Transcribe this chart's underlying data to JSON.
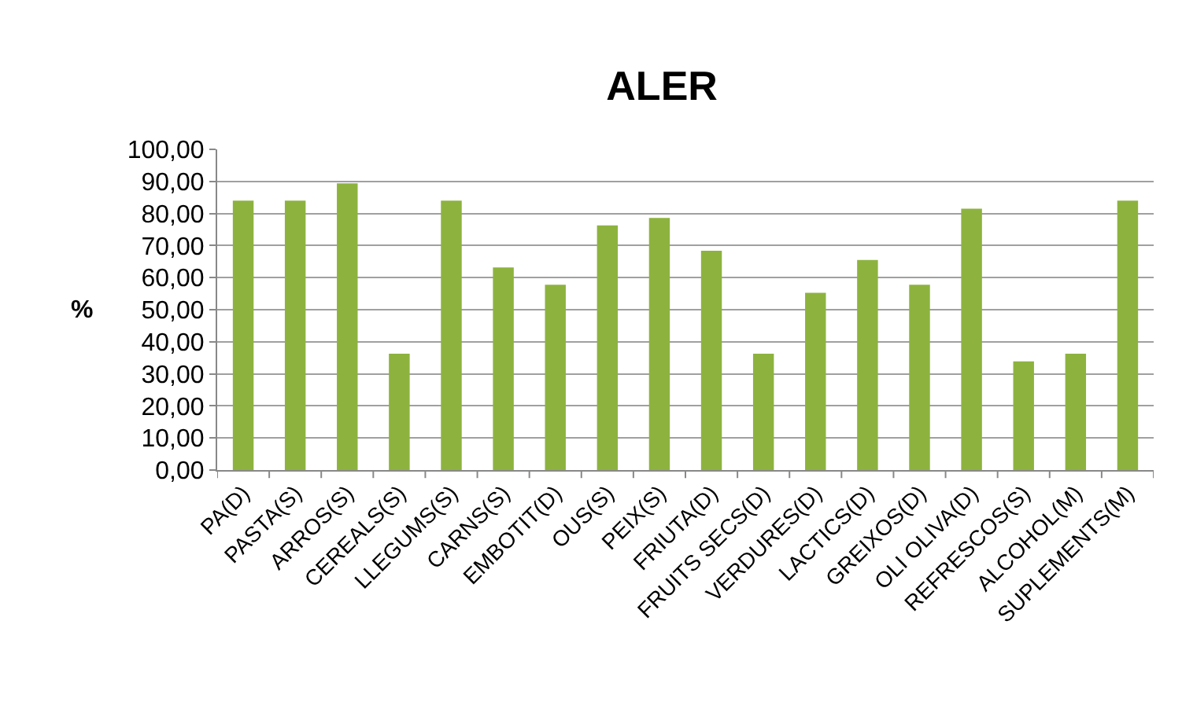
{
  "chart_data": {
    "type": "bar",
    "title": "ALER",
    "ylabel": "%",
    "categories": [
      "PA(D)",
      "PASTA(S)",
      "ARROS(S)",
      "CEREALS(S)",
      "LLEGUMS(S)",
      "CARNS(S)",
      "EMBOTIT(D)",
      "OUS(S)",
      "PEIX(S)",
      "FRIUTA(D)",
      "FRUITS SECS(D)",
      "VERDURES(D)",
      "LACTICS(D)",
      "GREIXOS(D)",
      "OLI OLIVA(D)",
      "REFRESCOS(S)",
      "ALCOHOL(M)",
      "SUPLEMENTS(M)"
    ],
    "values": [
      84,
      84,
      89.4,
      36.3,
      84,
      63.2,
      57.8,
      76.3,
      78.6,
      68.4,
      36.3,
      55.3,
      65.5,
      57.8,
      81.5,
      33.9,
      36.3,
      84
    ],
    "color": "#8db33e",
    "ylim": [
      0,
      100
    ],
    "yticks": [
      {
        "value": 0,
        "label": "0,00"
      },
      {
        "value": 10,
        "label": "10,00"
      },
      {
        "value": 20,
        "label": "20,00"
      },
      {
        "value": 30,
        "label": "30,00"
      },
      {
        "value": 40,
        "label": "40,00"
      },
      {
        "value": 50,
        "label": "50,00"
      },
      {
        "value": 60,
        "label": "60,00"
      },
      {
        "value": 70,
        "label": "70,00"
      },
      {
        "value": 80,
        "label": "80,00"
      },
      {
        "value": 90,
        "label": "90,00"
      },
      {
        "value": 100,
        "label": "100,00"
      }
    ],
    "grid": "y"
  }
}
